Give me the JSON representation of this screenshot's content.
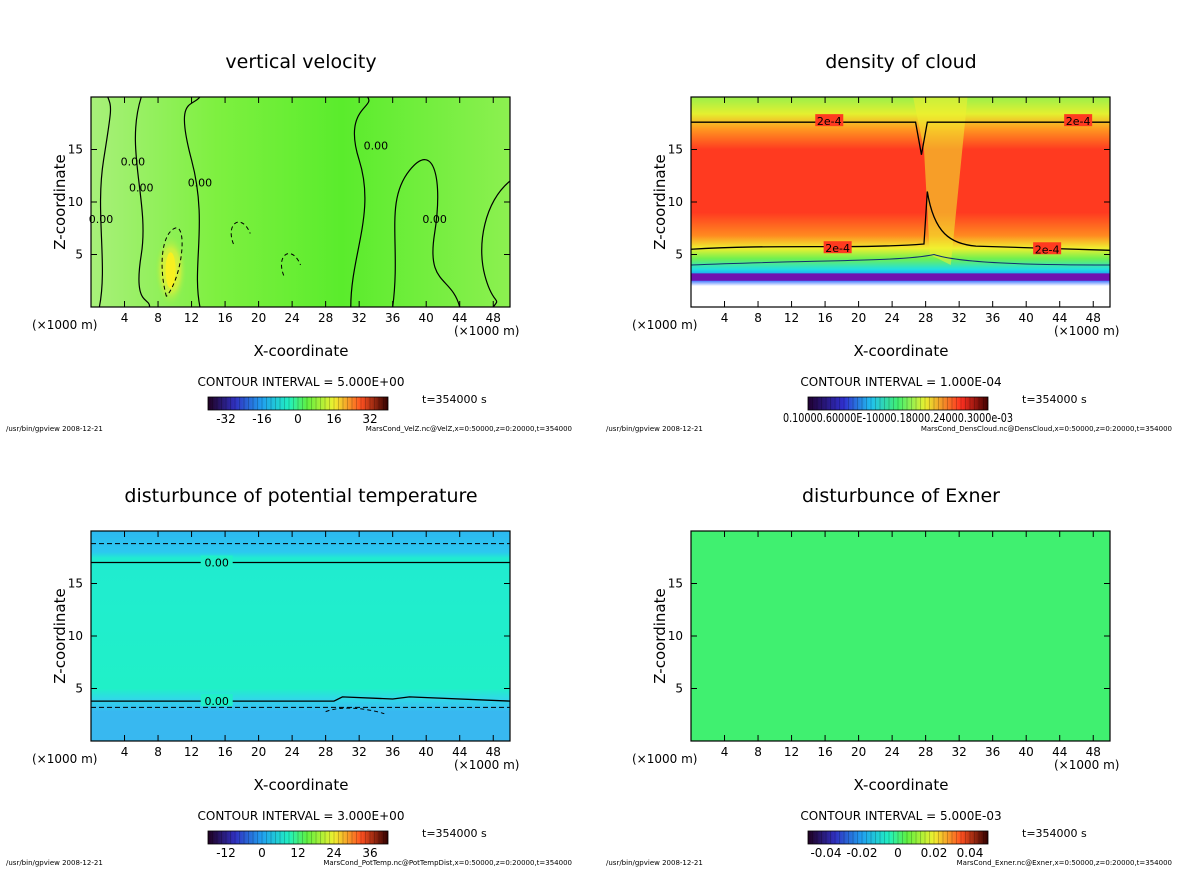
{
  "common": {
    "xlabel": "X-coordinate",
    "ylabel": "Z-coordinate",
    "xunit": "(×1000 m)",
    "xticks": [
      "4",
      "8",
      "12",
      "16",
      "20",
      "24",
      "28",
      "32",
      "36",
      "40",
      "44",
      "48"
    ],
    "yticks": [
      "5",
      "10",
      "15"
    ],
    "time": "t=354000 s",
    "path": "/usr/bin/gpview",
    "date": "2008-12-21"
  },
  "chart_data": [
    {
      "type": "heatmap",
      "title": "vertical velocity",
      "xlabel": "X-coordinate",
      "ylabel": "Z-coordinate",
      "xlim": [
        0,
        50
      ],
      "ylim": [
        0,
        20
      ],
      "contour_interval": "CONTOUR INTERVAL = 5.000E+00",
      "colorbar_ticks": [
        "-32",
        "-16",
        "0",
        "16",
        "32"
      ],
      "colorbar_range": [
        -40,
        40
      ],
      "contour_labels": [
        "0.00",
        "0.00",
        "0.00",
        "0.00",
        "0.00",
        "0.00"
      ],
      "file": "MarsCond_VelZ.nc@VelZ,x=0:50000,z=0:20000,t=354000"
    },
    {
      "type": "heatmap",
      "title": "density of cloud",
      "xlabel": "X-coordinate",
      "ylabel": "Z-coordinate",
      "xlim": [
        0,
        50
      ],
      "ylim": [
        0,
        20
      ],
      "contour_interval": "CONTOUR INTERVAL = 1.000E-04",
      "colorbar_ticks_text": "0.10000.60000E-10000.18000.24000.3000e-03",
      "contour_labels": [
        "2e-4",
        "2e-4",
        "2e-4",
        "2e-4"
      ],
      "file": "MarsCond_DensCloud.nc@DensCloud,x=0:50000,z=0:20000,t=354000"
    },
    {
      "type": "heatmap",
      "title": "disturbunce of potential temperature",
      "xlabel": "X-coordinate",
      "ylabel": "Z-coordinate",
      "xlim": [
        0,
        50
      ],
      "ylim": [
        0,
        20
      ],
      "contour_interval": "CONTOUR INTERVAL = 3.000E+00",
      "colorbar_ticks": [
        "-12",
        "0",
        "12",
        "24",
        "36"
      ],
      "colorbar_range": [
        -18,
        42
      ],
      "contour_labels": [
        "0.00",
        "0.00"
      ],
      "file": "MarsCond_PotTemp.nc@PotTempDist,x=0:50000,z=0:20000,t=354000"
    },
    {
      "type": "heatmap",
      "title": "disturbunce of Exner",
      "xlabel": "X-coordinate",
      "ylabel": "Z-coordinate",
      "xlim": [
        0,
        50
      ],
      "ylim": [
        0,
        20
      ],
      "contour_interval": "CONTOUR INTERVAL = 5.000E-03",
      "colorbar_ticks": [
        "-0.04",
        "-0.02",
        "0",
        "0.02",
        "0.04"
      ],
      "colorbar_range": [
        -0.05,
        0.05
      ],
      "contour_labels": [],
      "file": "MarsCond_Exner.nc@Exner,x=0:50000,z=0:20000,t=354000"
    }
  ]
}
